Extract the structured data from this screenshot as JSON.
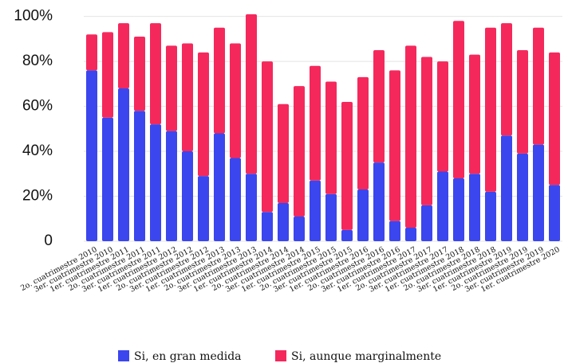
{
  "chart_data": {
    "type": "stacked_bar",
    "categories": [
      "2o. cuatrimestre 2010",
      "3er. cuatrimestre 2010",
      "1er. cuatrimestre 2011",
      "2o. cuatrimestre 2011",
      "3er. cuatrimestre 2011",
      "1er. cuatrimestre 2012",
      "2o. cuatrimestre 2012",
      "3er. cuatrimestre 2012",
      "1er. cuatrimestre 2013",
      "2o. cuatrimestre 2013",
      "3er. cuatrimestre 2013",
      "1er. cuatrimestre 2014",
      "2o. cuatrimestre 2014",
      "3er. cuatrimestre 2014",
      "1er. cuatrimestre 2015",
      "2o. cuatrimestre 2015",
      "3er. cuatrimestre 2015",
      "1er. cuatrimestre 2016",
      "2o. cuatrimestre 2016",
      "3er. cuatrimestre 2016",
      "1er. cuatrimestre 2017",
      "2o. cuatrimestre 2017",
      "3er. cuatrimestre 2017",
      "1er. cuatrimestre 2018",
      "2o. cuatrimestre 2018",
      "3er. cuatrimestre 2018",
      "1er. cuatrimestre 2019",
      "2o. cuatrimestre 2019",
      "3er. cuatrimestre 2019",
      "1er. cuatrimestre 2020"
    ],
    "series": [
      {
        "name": "Si, en gran medida",
        "color": "#3b46ee",
        "values": [
          76,
          55,
          68,
          58,
          52,
          49,
          40,
          29,
          48,
          37,
          30,
          13,
          17,
          11,
          27,
          21,
          5,
          23,
          35,
          9,
          6,
          16,
          31,
          28,
          30,
          22,
          47,
          39,
          43,
          25
        ]
      },
      {
        "name": "Si, aunque marginalmente",
        "color": "#f5285c",
        "values": [
          16,
          38,
          29,
          33,
          45,
          38,
          48,
          55,
          47,
          51,
          71,
          67,
          44,
          58,
          51,
          50,
          57,
          50,
          50,
          67,
          81,
          66,
          49,
          70,
          53,
          73,
          50,
          46,
          52,
          59
        ]
      }
    ],
    "ylim": [
      0,
      102
    ],
    "yticks": [
      0,
      {
        "value": 20,
        "label": "20%"
      },
      {
        "value": 40,
        "label": "40%"
      },
      {
        "value": 60,
        "label": "60%"
      },
      {
        "value": 80,
        "label": "80%"
      },
      {
        "value": 100,
        "label": "100%"
      }
    ],
    "grid": true
  }
}
